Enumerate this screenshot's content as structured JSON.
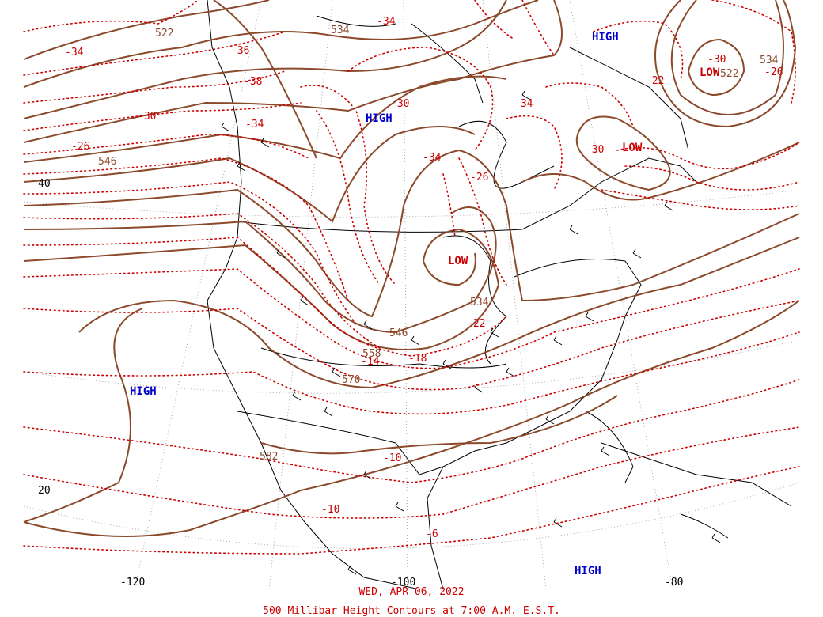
{
  "map": {
    "date_label": "WED, APR 06, 2022",
    "caption": "500-Millibar Height Contours at 7:00 A.M. E.S.T.",
    "latitude_labels": [
      "40",
      "20"
    ],
    "longitude_labels": [
      "-120",
      "-100",
      "-80"
    ],
    "pressure_centers": [
      {
        "type": "HIGH",
        "color": "#0000cc"
      },
      {
        "type": "HIGH",
        "color": "#0000cc"
      },
      {
        "type": "HIGH",
        "color": "#0000cc"
      },
      {
        "type": "HIGH",
        "color": "#0000cc"
      },
      {
        "type": "LOW",
        "color": "#cc0000"
      },
      {
        "type": "LOW",
        "color": "#cc0000"
      },
      {
        "type": "LOW",
        "color": "#cc0000"
      }
    ],
    "height_labels": [
      "522",
      "534",
      "546",
      "534",
      "534",
      "546",
      "558",
      "570",
      "582",
      "522"
    ],
    "temperature_labels": [
      "-34",
      "-36",
      "-38",
      "-34",
      "-34",
      "-30",
      "-26",
      "-30",
      "-34",
      "-26",
      "-34",
      "-30",
      "-22",
      "-30",
      "-26",
      "-22",
      "-18",
      "-14",
      "-10",
      "-10",
      "-6"
    ],
    "colors": {
      "height_contour": "#8b4a2b",
      "temperature_contour": "#cc0000",
      "high": "#0000cc",
      "low": "#cc0000",
      "caption": "#cc0000",
      "background": "#ffffff"
    }
  }
}
